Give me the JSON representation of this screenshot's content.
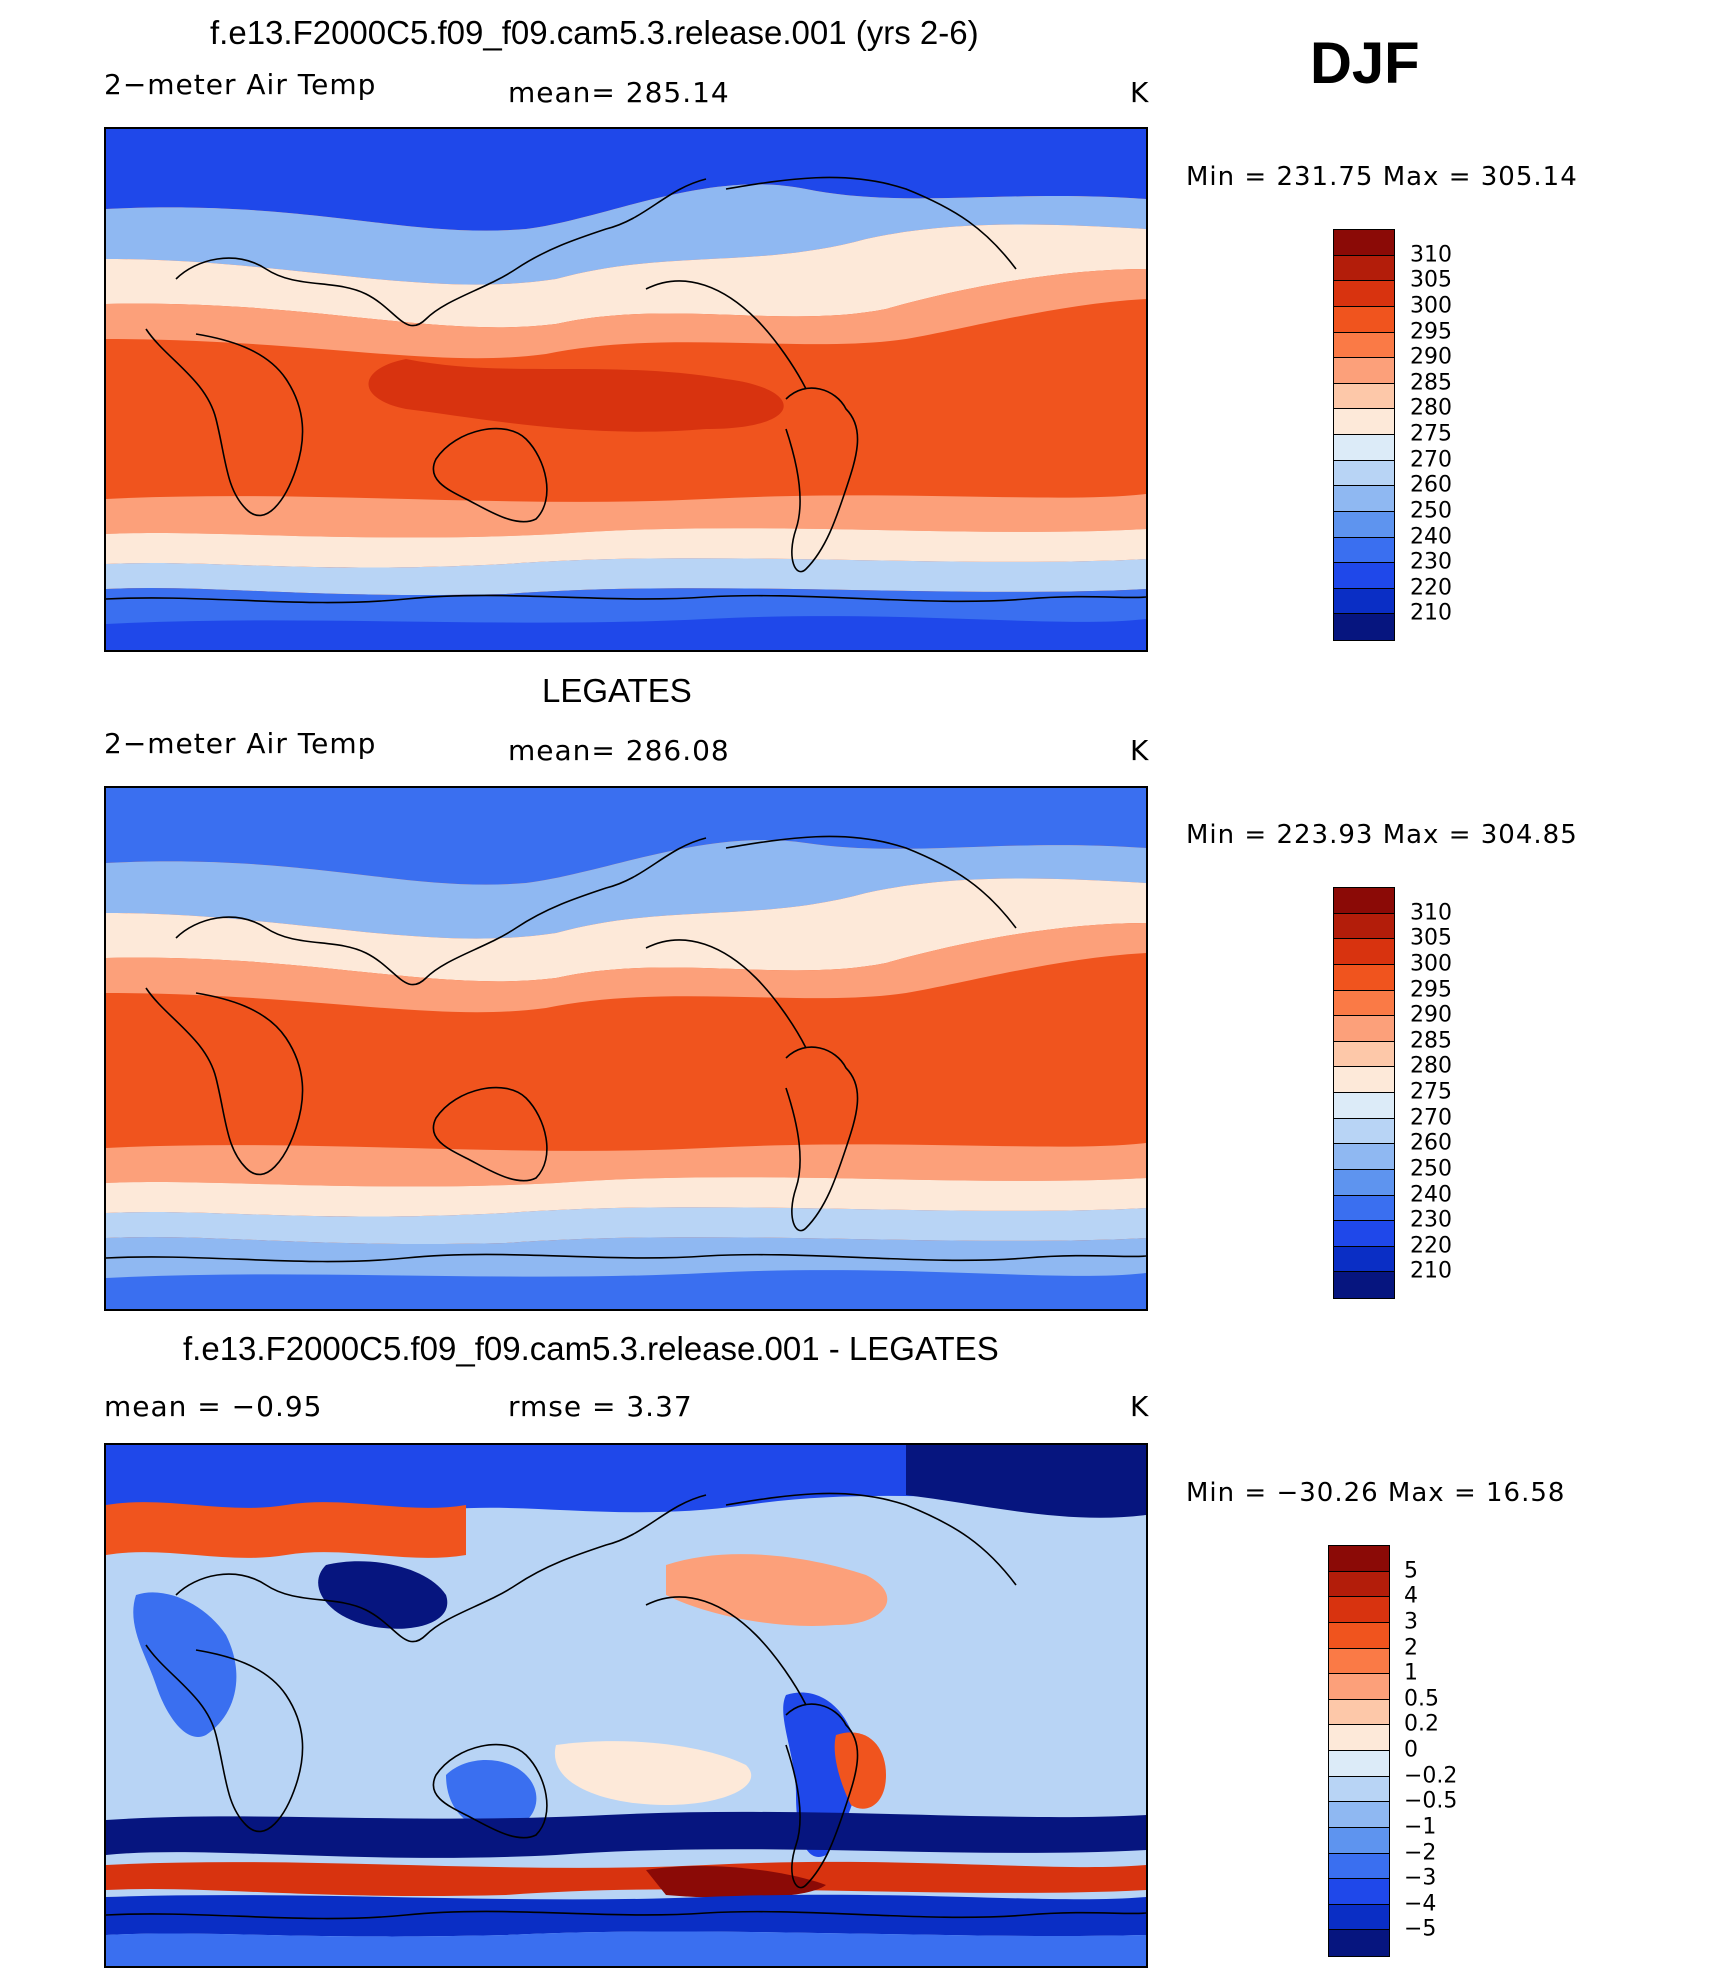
{
  "season": "DJF",
  "panels": [
    {
      "title": "f.e13.F2000C5.f09_f09.cam5.3.release.001 (yrs 2-6)",
      "left": "2−meter Air Temp",
      "center": "mean=  285.14",
      "right": "K",
      "minmax": "Min  =  231.75  Max  =  305.14",
      "map_kind": "abs"
    },
    {
      "title": "LEGATES",
      "left": "2−meter Air Temp",
      "center": "mean=  286.08",
      "right": "K",
      "minmax": "Min  =  223.93  Max  =  304.85",
      "map_kind": "abs"
    },
    {
      "title": "f.e13.F2000C5.f09_f09.cam5.3.release.001 - LEGATES",
      "left": "mean  =    −0.95",
      "center": "rmse  =     3.37",
      "right": "K",
      "minmax": "Min  =  −30.26  Max  =    16.58",
      "map_kind": "diff"
    }
  ],
  "colorbars": {
    "abs": {
      "labels": [
        "310",
        "305",
        "300",
        "295",
        "290",
        "285",
        "280",
        "275",
        "270",
        "260",
        "250",
        "240",
        "230",
        "220",
        "210"
      ],
      "colors": [
        "#8b0a06",
        "#b31d0a",
        "#d8330f",
        "#f0541e",
        "#fa7a46",
        "#fca07a",
        "#fdc8a9",
        "#fde9d9",
        "#dcebf8",
        "#b8d4f5",
        "#8fb8f2",
        "#5e94ef",
        "#3a6ff0",
        "#1f48ea",
        "#0a2ec5",
        "#06157f"
      ]
    },
    "diff": {
      "labels": [
        "5",
        "4",
        "3",
        "2",
        "1",
        "0.5",
        "0.2",
        "0",
        "−0.2",
        "−0.5",
        "−1",
        "−2",
        "−3",
        "−4",
        "−5"
      ],
      "colors": [
        "#8b0a06",
        "#b31d0a",
        "#d8330f",
        "#f0541e",
        "#fa7a46",
        "#fca07a",
        "#fdc8a9",
        "#fde9d9",
        "#dcebf8",
        "#b8d4f5",
        "#8fb8f2",
        "#5e94ef",
        "#3a6ff0",
        "#1f48ea",
        "#0a2ec5",
        "#06157f"
      ]
    }
  }
}
